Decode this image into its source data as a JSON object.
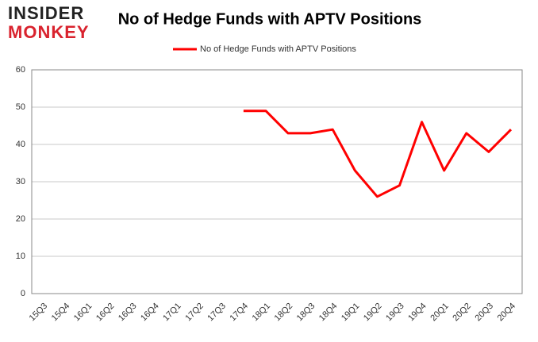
{
  "logo": {
    "line1": "INSIDER",
    "line2": "MONKEY"
  },
  "chart_data": {
    "type": "line",
    "title": "No of Hedge Funds with APTV Positions",
    "categories": [
      "15Q3",
      "15Q4",
      "16Q1",
      "16Q2",
      "16Q3",
      "16Q4",
      "17Q1",
      "17Q2",
      "17Q3",
      "17Q4",
      "18Q1",
      "18Q2",
      "18Q3",
      "18Q4",
      "19Q1",
      "19Q2",
      "19Q3",
      "19Q4",
      "20Q1",
      "20Q2",
      "20Q3",
      "20Q4"
    ],
    "series": [
      {
        "name": "No of Hedge Funds with APTV Positions",
        "color": "#ff0000",
        "values": [
          null,
          null,
          null,
          null,
          null,
          null,
          null,
          null,
          null,
          49,
          49,
          43,
          43,
          44,
          33,
          26,
          29,
          46,
          33,
          43,
          38,
          44
        ]
      }
    ],
    "ylim": [
      0,
      60
    ],
    "yticks": [
      0,
      10,
      20,
      30,
      40,
      50,
      60
    ],
    "grid": true,
    "legend": "top"
  }
}
